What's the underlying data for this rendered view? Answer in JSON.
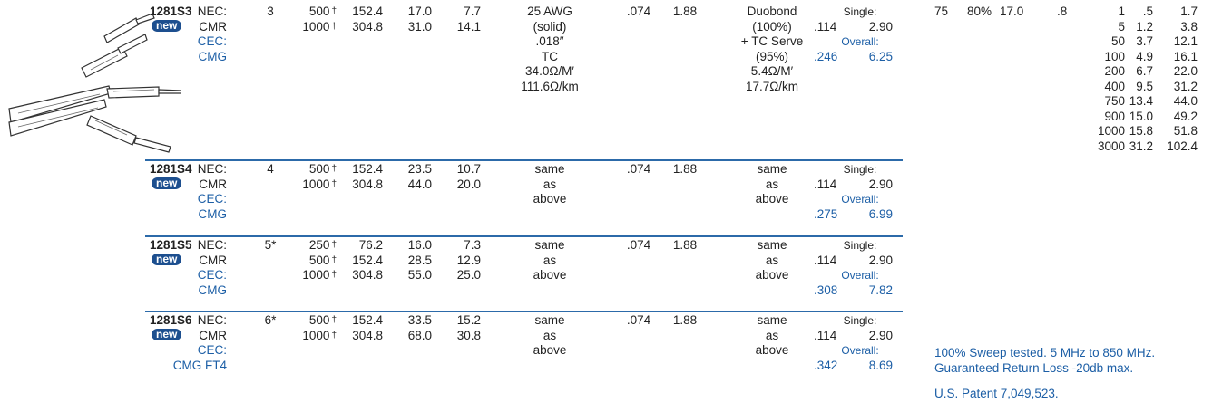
{
  "rows": [
    {
      "part": "1281S3",
      "badge": "new",
      "listing": [
        "NEC:",
        "CMR",
        "CEC:",
        "CMG"
      ],
      "pairs": "3",
      "length_ft": [
        "500",
        "1000"
      ],
      "length_mark": "†",
      "length_m": [
        "152.4",
        "304.8"
      ],
      "weight_lbs": [
        "17.0",
        "31.0"
      ],
      "weight_kg": [
        "7.7",
        "14.1"
      ],
      "conductor": [
        "25 AWG",
        "(solid)",
        ".018″",
        "TC",
        "34.0Ω/M′",
        "111.6Ω/km"
      ],
      "insulation_in": ".074",
      "insulation_mm": "1.88",
      "shield": [
        "Duobond",
        "(100%)",
        "+ TC Serve",
        "(95%)",
        "5.4Ω/M′",
        "17.7Ω/km"
      ],
      "jacket": {
        "single_label": "Single:",
        "single_in": ".114",
        "single_mm": "2.90",
        "overall_label": "Overall:",
        "overall_in": ".246",
        "overall_mm": "6.25"
      }
    },
    {
      "part": "1281S4",
      "badge": "new",
      "listing": [
        "NEC:",
        "CMR",
        "CEC:",
        "CMG"
      ],
      "pairs": "4",
      "length_ft": [
        "500",
        "1000"
      ],
      "length_mark": "†",
      "length_m": [
        "152.4",
        "304.8"
      ],
      "weight_lbs": [
        "23.5",
        "44.0"
      ],
      "weight_kg": [
        "10.7",
        "20.0"
      ],
      "conductor": [
        "same",
        "as",
        "above"
      ],
      "insulation_in": ".074",
      "insulation_mm": "1.88",
      "shield": [
        "same",
        "as",
        "above"
      ],
      "jacket": {
        "single_label": "Single:",
        "single_in": ".114",
        "single_mm": "2.90",
        "overall_label": "Overall:",
        "overall_in": ".275",
        "overall_mm": "6.99"
      }
    },
    {
      "part": "1281S5",
      "badge": "new",
      "listing": [
        "NEC:",
        "CMR",
        "CEC:",
        "CMG"
      ],
      "pairs": "5*",
      "length_ft": [
        "250",
        "500",
        "1000"
      ],
      "length_mark": "†",
      "length_m": [
        "76.2",
        "152.4",
        "304.8"
      ],
      "weight_lbs": [
        "16.0",
        "28.5",
        "55.0"
      ],
      "weight_kg": [
        "7.3",
        "12.9",
        "25.0"
      ],
      "conductor": [
        "same",
        "as",
        "above"
      ],
      "insulation_in": ".074",
      "insulation_mm": "1.88",
      "shield": [
        "same",
        "as",
        "above"
      ],
      "jacket": {
        "single_label": "Single:",
        "single_in": ".114",
        "single_mm": "2.90",
        "overall_label": "Overall:",
        "overall_in": ".308",
        "overall_mm": "7.82"
      }
    },
    {
      "part": "1281S6",
      "badge": "new",
      "listing": [
        "NEC:",
        "CMR",
        "CEC:",
        "CMG FT4"
      ],
      "pairs": "6*",
      "length_ft": [
        "500",
        "1000"
      ],
      "length_mark": "†",
      "length_m": [
        "152.4",
        "304.8"
      ],
      "weight_lbs": [
        "33.5",
        "68.0"
      ],
      "weight_kg": [
        "15.2",
        "30.8"
      ],
      "conductor": [
        "same",
        "as",
        "above"
      ],
      "insulation_in": ".074",
      "insulation_mm": "1.88",
      "shield": [
        "same",
        "as",
        "above"
      ],
      "jacket": {
        "single_label": "Single:",
        "single_in": ".114",
        "single_mm": "2.90",
        "overall_label": "Overall:",
        "overall_in": ".342",
        "overall_mm": "8.69"
      }
    }
  ],
  "electrical": {
    "impedance": "75",
    "velocity": "80%",
    "capacitance": "17.0",
    "capacitance_2": ".8",
    "attenuation": {
      "mhz": [
        "1",
        "5",
        "50",
        "100",
        "200",
        "400",
        "750",
        "900",
        "1000",
        "3000"
      ],
      "db_100ft": [
        ".5",
        "1.2",
        "3.7",
        "4.9",
        "6.7",
        "9.5",
        "13.4",
        "15.0",
        "15.8",
        "31.2"
      ],
      "db_100m": [
        "1.7",
        "3.8",
        "12.1",
        "16.1",
        "22.0",
        "31.2",
        "44.0",
        "49.2",
        "51.8",
        "102.4"
      ]
    }
  },
  "notes": [
    "100% Sweep tested. 5 MHz to 850 MHz.",
    "Guaranteed Return Loss -20db max.",
    "U.S. Patent 7,049,523."
  ]
}
